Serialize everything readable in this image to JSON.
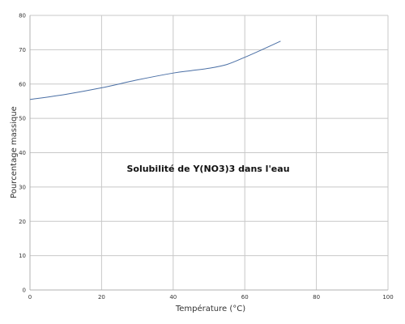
{
  "chart_data": {
    "type": "line",
    "title": "",
    "annotation": "Solubilité de Y(NO3)3 dans l'eau",
    "xlabel": "Température (°C)",
    "ylabel": "Pourcentage massique",
    "xlim": [
      0,
      100
    ],
    "ylim": [
      0,
      80
    ],
    "xticks": [
      0,
      20,
      40,
      60,
      80,
      100
    ],
    "yticks": [
      0,
      10,
      20,
      30,
      40,
      50,
      60,
      70,
      80
    ],
    "grid": true,
    "legend": "none",
    "series": [
      {
        "color": "#4a6fa5",
        "x": [
          0,
          10,
          20,
          30,
          40,
          45,
          50,
          55,
          60,
          65,
          70
        ],
        "y": [
          55.5,
          57.0,
          58.9,
          61.2,
          63.2,
          63.9,
          64.6,
          65.7,
          67.8,
          70.1,
          72.5
        ]
      }
    ]
  }
}
